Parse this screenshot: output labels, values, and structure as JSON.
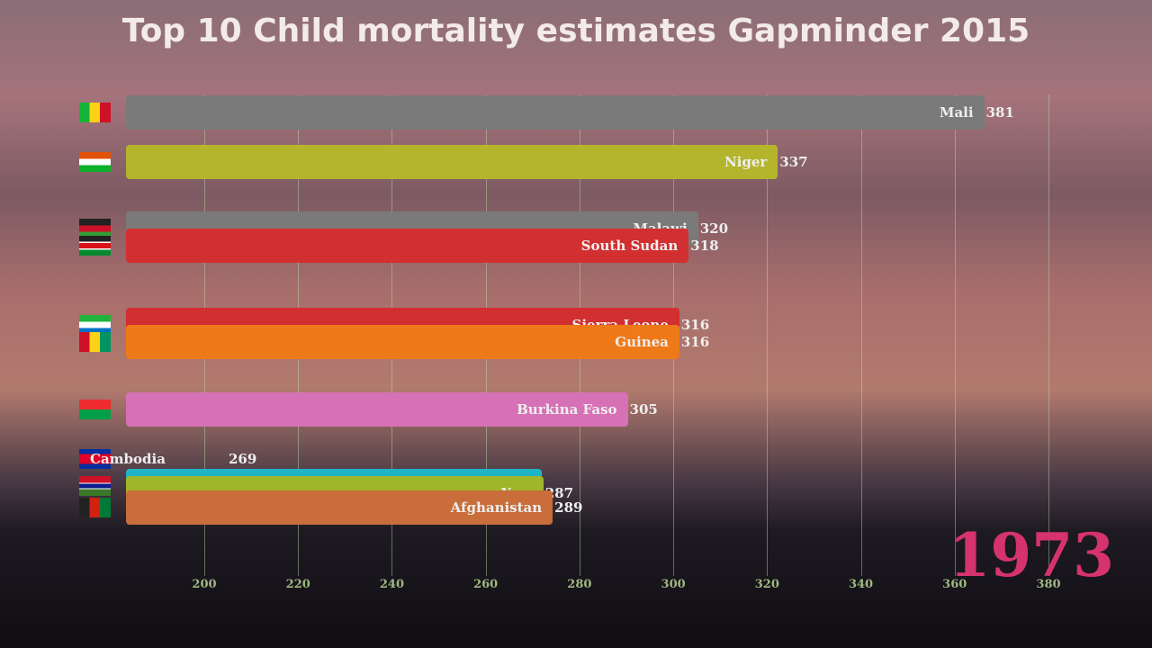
{
  "chart_data": {
    "type": "bar",
    "orientation": "horizontal",
    "title": "Top 10 Child mortality estimates Gapminder 2015",
    "year": "1973",
    "x_ticks": [
      200,
      220,
      240,
      260,
      280,
      300,
      320,
      340,
      360,
      380
    ],
    "xlim": [
      183,
      381
    ],
    "grid": true,
    "series": [
      {
        "name": "Mali",
        "value": 381,
        "color": "#7a7a7a",
        "flag": "mali"
      },
      {
        "name": "Niger",
        "value": 337,
        "color": "#b4b52c",
        "flag": "niger"
      },
      {
        "name": "Malawi",
        "value": 320,
        "color": "#7a7a7a",
        "flag": "malawi"
      },
      {
        "name": "South Sudan",
        "value": 318,
        "color": "#d12f30",
        "flag": "south-sudan"
      },
      {
        "name": "Sierra Leone",
        "value": 316,
        "color": "#d12f30",
        "flag": "sierra-leone"
      },
      {
        "name": "Guinea",
        "value": 316,
        "color": "#ee7918",
        "flag": "guinea"
      },
      {
        "name": "Burkina Faso",
        "value": 305,
        "color": "#d771b6",
        "flag": "burkina-faso"
      },
      {
        "name": "Cambodia",
        "value": 269,
        "color": "#2b4aa8",
        "flag": "cambodia"
      },
      {
        "name": "",
        "value": null,
        "color": "#1fb4c6",
        "flag": "gambia"
      },
      {
        "name": "Ye...",
        "value": 287,
        "color": "#9fb52a",
        "flag": ""
      },
      {
        "name": "Afghanistan",
        "value": 289,
        "color": "#c96d3a",
        "flag": "afghanistan"
      }
    ]
  }
}
